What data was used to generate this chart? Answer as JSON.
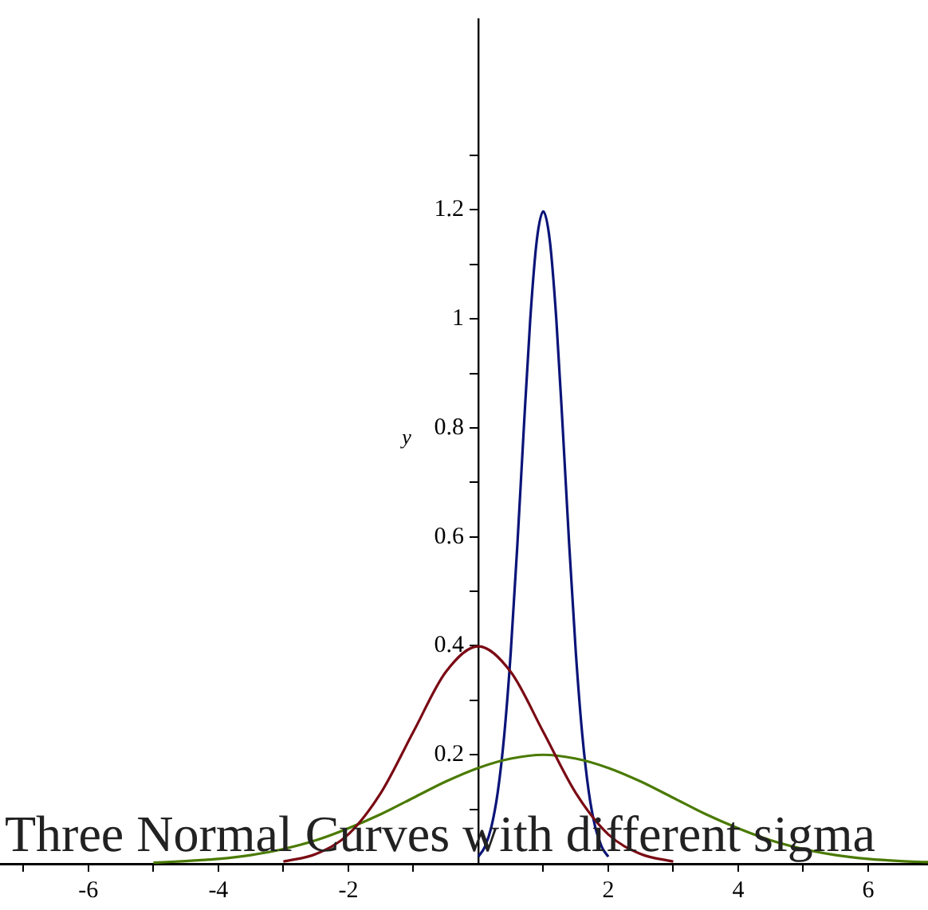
{
  "chart_data": {
    "type": "line",
    "title": "Three Normal Curves with different sigma",
    "ylabel": "y",
    "marker": "none",
    "line_style": "solid",
    "xlim": [
      -7.36,
      6.92
    ],
    "ylim": [
      0,
      1.55
    ],
    "xticks": [
      {
        "value": -7,
        "label": null
      },
      -6,
      {
        "value": -5,
        "label": null
      },
      -4,
      {
        "value": -3,
        "label": null
      },
      -2,
      {
        "value": -1,
        "label": null
      },
      {
        "value": 1,
        "label": null
      },
      2,
      {
        "value": 3,
        "label": null
      },
      4,
      {
        "value": 5,
        "label": null
      },
      6
    ],
    "yticks": [
      {
        "value": 0.1,
        "label": null
      },
      0.2,
      {
        "value": 0.3,
        "label": null
      },
      0.4,
      {
        "value": 0.5,
        "label": null
      },
      0.6,
      {
        "value": 0.7,
        "label": null
      },
      0.8,
      {
        "value": 0.9,
        "label": null
      },
      1,
      {
        "value": 1.1,
        "label": null
      },
      1.2,
      {
        "value": 1.3,
        "label": null
      }
    ],
    "series": [
      {
        "color": "#7a0a14",
        "x": [
          -3,
          -2.5,
          -2,
          -1.5,
          -1,
          -0.5,
          0,
          0.5,
          1,
          1.5,
          2,
          2.5,
          3
        ],
        "values": [
          0.004,
          0.018,
          0.054,
          0.13,
          0.242,
          0.352,
          0.399,
          0.352,
          0.242,
          0.13,
          0.054,
          0.018,
          0.004
        ]
      },
      {
        "color": "#4a7a00",
        "x": [
          -5,
          -4.5,
          -4,
          -3.5,
          -3,
          -2.5,
          -2,
          -1.5,
          -1,
          -0.5,
          0,
          0.5,
          1,
          1.5,
          2,
          2.5,
          3,
          3.5,
          4,
          4.5,
          5,
          5.5,
          6,
          6.5,
          6.92
        ],
        "values": [
          0.002,
          0.005,
          0.009,
          0.016,
          0.027,
          0.043,
          0.065,
          0.091,
          0.121,
          0.151,
          0.176,
          0.193,
          0.2,
          0.193,
          0.176,
          0.151,
          0.121,
          0.091,
          0.065,
          0.043,
          0.027,
          0.016,
          0.009,
          0.005,
          0.003
        ]
      },
      {
        "color": "#0a1478",
        "x": [
          0,
          0.1,
          0.2,
          0.3,
          0.4,
          0.5,
          0.6,
          0.7,
          0.8,
          0.9,
          1,
          1.1,
          1.2,
          1.3,
          1.4,
          1.5,
          1.6,
          1.7,
          1.8,
          1.9,
          2
        ],
        "values": [
          0.013,
          0.031,
          0.067,
          0.132,
          0.237,
          0.389,
          0.583,
          0.798,
          1,
          1.144,
          1.197,
          1.144,
          1,
          0.798,
          0.583,
          0.389,
          0.237,
          0.132,
          0.067,
          0.031,
          0.013
        ]
      }
    ]
  }
}
